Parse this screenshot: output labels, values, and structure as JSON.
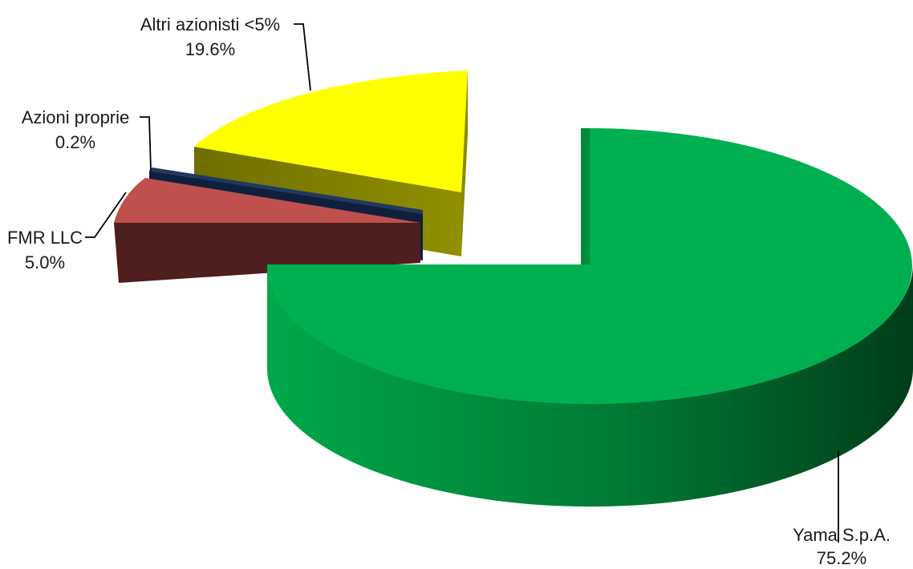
{
  "chart_data": {
    "type": "pie",
    "title": "",
    "style": "3d-exploded",
    "slices": [
      {
        "label": "Yama S.p.A.",
        "value": 75.2,
        "value_label": "75.2%",
        "color": "#00b050"
      },
      {
        "label": "FMR LLC",
        "value": 5.0,
        "value_label": "5.0%",
        "color": "#c0504d"
      },
      {
        "label": "Azioni proprie",
        "value": 0.2,
        "value_label": "0.2%",
        "color": "#1f3864"
      },
      {
        "label": "Altri azionisti <5%",
        "value": 19.6,
        "value_label": "19.6%",
        "color": "#ffff00"
      }
    ],
    "legend": "none"
  }
}
